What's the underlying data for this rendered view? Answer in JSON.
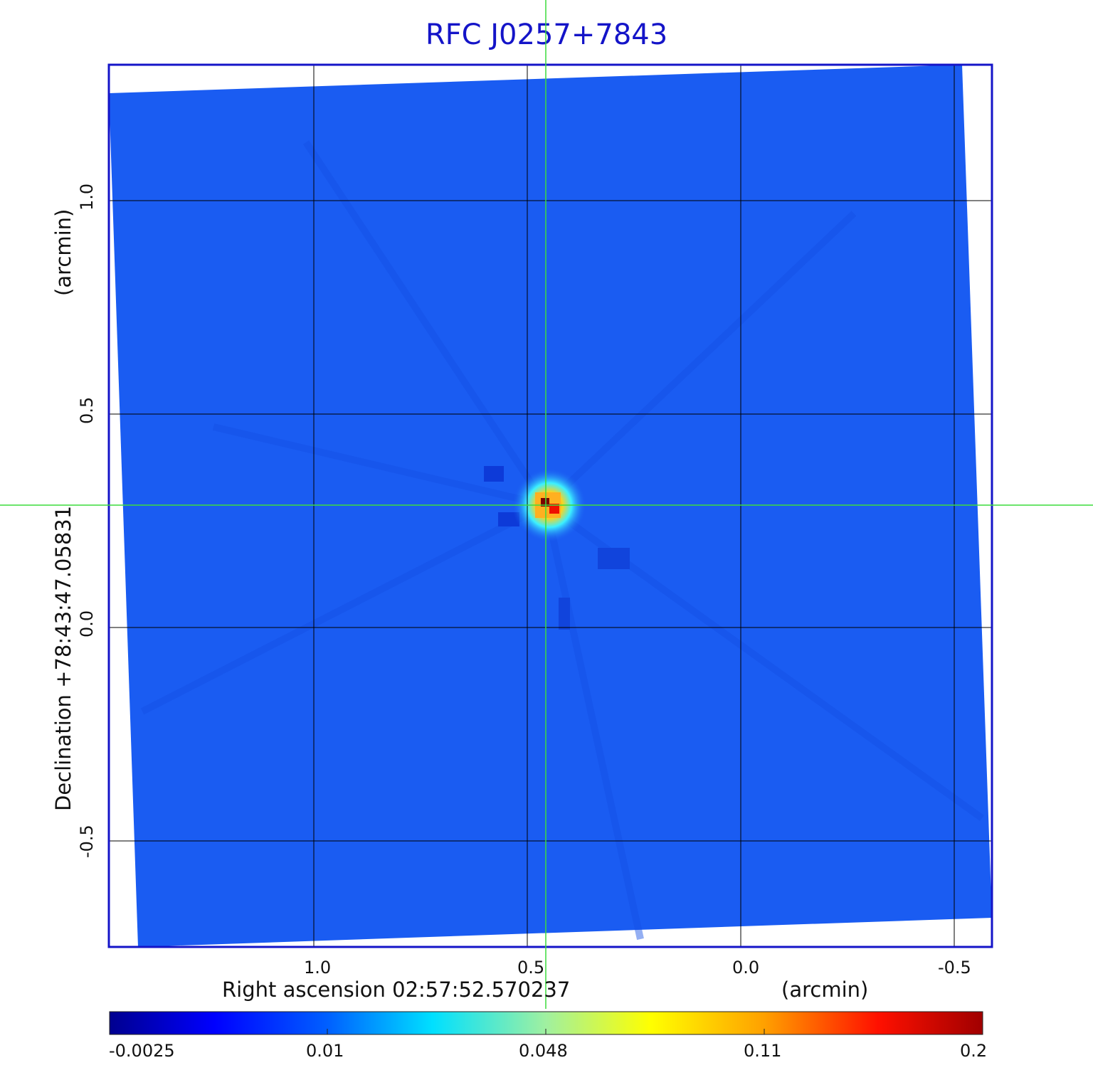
{
  "title": "RFC J0257+7843",
  "x_axis": {
    "label": "Right ascension  02:57:52.570237",
    "unit": "(arcmin)",
    "ticks": [
      "1.0",
      "0.5",
      "0.0",
      "-0.5"
    ]
  },
  "y_axis": {
    "label": "Declination  +78:43:47.05831",
    "unit": "(arcmin)",
    "ticks": [
      "1.0",
      "0.5",
      "0.0",
      "-0.5"
    ]
  },
  "colorbar": {
    "ticks": [
      "-0.0025",
      "0.01",
      "0.048",
      "0.11",
      "0.2"
    ],
    "colormap": "jet"
  },
  "colors": {
    "title": "#1414c8",
    "frame": "#1414c8",
    "crosshair": "#3cdc3c",
    "background_field": "#1a5cf2"
  }
}
